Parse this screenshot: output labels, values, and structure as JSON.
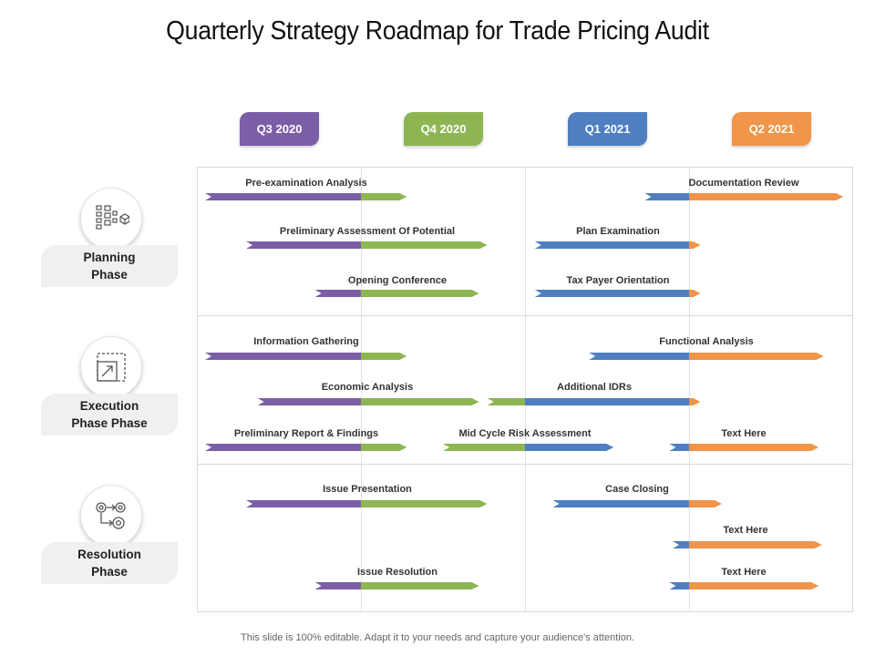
{
  "title": "Quarterly Strategy Roadmap for Trade Pricing Audit",
  "quarters": [
    {
      "label": "Q3 2020",
      "color": "#7b5ea6"
    },
    {
      "label": "Q4 2020",
      "color": "#8db653"
    },
    {
      "label": "Q1 2021",
      "color": "#4f7fc1"
    },
    {
      "label": "Q2 2021",
      "color": "#f0954a"
    }
  ],
  "phases": [
    {
      "label": "Planning\nPhase",
      "icon": "org-chart-icon"
    },
    {
      "label": "Execution\nPhase Phase",
      "icon": "resize-icon"
    },
    {
      "label": "Resolution\nPhase",
      "icon": "gears-icon"
    }
  ],
  "tasks": [
    {
      "label": "Pre-examination Analysis",
      "start": 0.05,
      "end": 1.28
    },
    {
      "label": "Preliminary Assessment Of Potential",
      "start": 0.3,
      "end": 1.77
    },
    {
      "label": "Opening Conference",
      "start": 0.72,
      "end": 1.72
    },
    {
      "label": "Information Gathering",
      "start": 0.05,
      "end": 1.28
    },
    {
      "label": "Economic Analysis",
      "start": 0.37,
      "end": 1.72
    },
    {
      "label": "Preliminary Report & Findings",
      "start": 0.05,
      "end": 1.28
    },
    {
      "label": "Issue Presentation",
      "start": 0.3,
      "end": 1.77
    },
    {
      "label": "Issue Resolution",
      "start": 0.72,
      "end": 1.72
    },
    {
      "label": "Documentation Review",
      "start": 2.73,
      "end": 3.94
    },
    {
      "label": "Plan Examination",
      "start": 2.06,
      "end": 3.07
    },
    {
      "label": "Tax Payer Orientation",
      "start": 2.06,
      "end": 3.07
    },
    {
      "label": "Functional Analysis",
      "start": 2.39,
      "end": 3.82
    },
    {
      "label": "Additional IDRs",
      "start": 1.77,
      "end": 3.07
    },
    {
      "label": "Mid Cycle Risk Assessment",
      "start": 1.5,
      "end": 2.54
    },
    {
      "label": "Text Here",
      "start": 2.88,
      "end": 3.79
    },
    {
      "label": "Case Closing",
      "start": 2.17,
      "end": 3.2
    },
    {
      "label": "Text Here",
      "start": 2.9,
      "end": 3.81
    },
    {
      "label": "Text Here",
      "start": 2.88,
      "end": 3.79
    }
  ],
  "footer": "This slide is 100% editable. Adapt it to your needs and capture your audience's attention."
}
